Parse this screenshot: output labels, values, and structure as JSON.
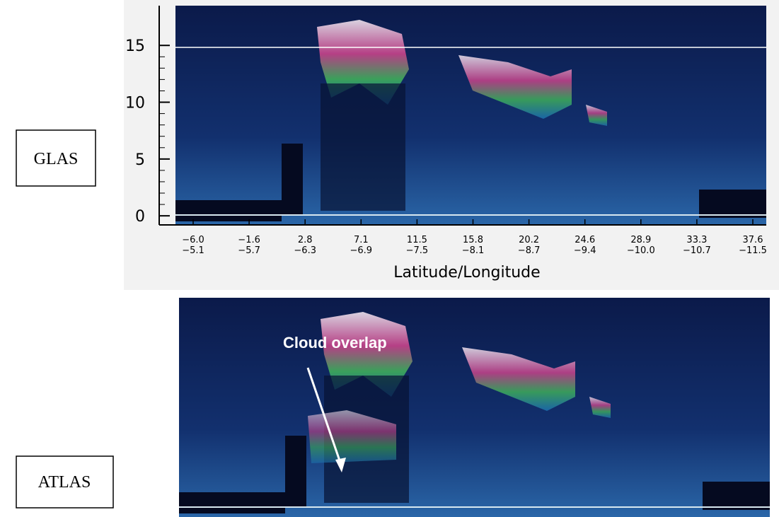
{
  "glas": {
    "label": "GLAS",
    "ylim": [
      -0.8,
      18.5
    ],
    "yticks": [
      0,
      5,
      10,
      15
    ],
    "xticks": [
      {
        "lat": "−6.0",
        "lon": "−5.1"
      },
      {
        "lat": "−1.6",
        "lon": "−5.7"
      },
      {
        "lat": "2.8",
        "lon": "−6.3"
      },
      {
        "lat": "7.1",
        "lon": "−6.9"
      },
      {
        "lat": "11.5",
        "lon": "−7.5"
      },
      {
        "lat": "15.8",
        "lon": "−8.1"
      },
      {
        "lat": "20.2",
        "lon": "−8.7"
      },
      {
        "lat": "24.6",
        "lon": "−9.4"
      },
      {
        "lat": "28.9",
        "lon": "−10.0"
      },
      {
        "lat": "33.3",
        "lon": "−10.7"
      },
      {
        "lat": "37.6",
        "lon": "−11.5"
      }
    ],
    "xlabel": "Latitude/Longitude"
  },
  "atlas": {
    "label": "ATLAS",
    "annotation": "Cloud overlap"
  }
}
